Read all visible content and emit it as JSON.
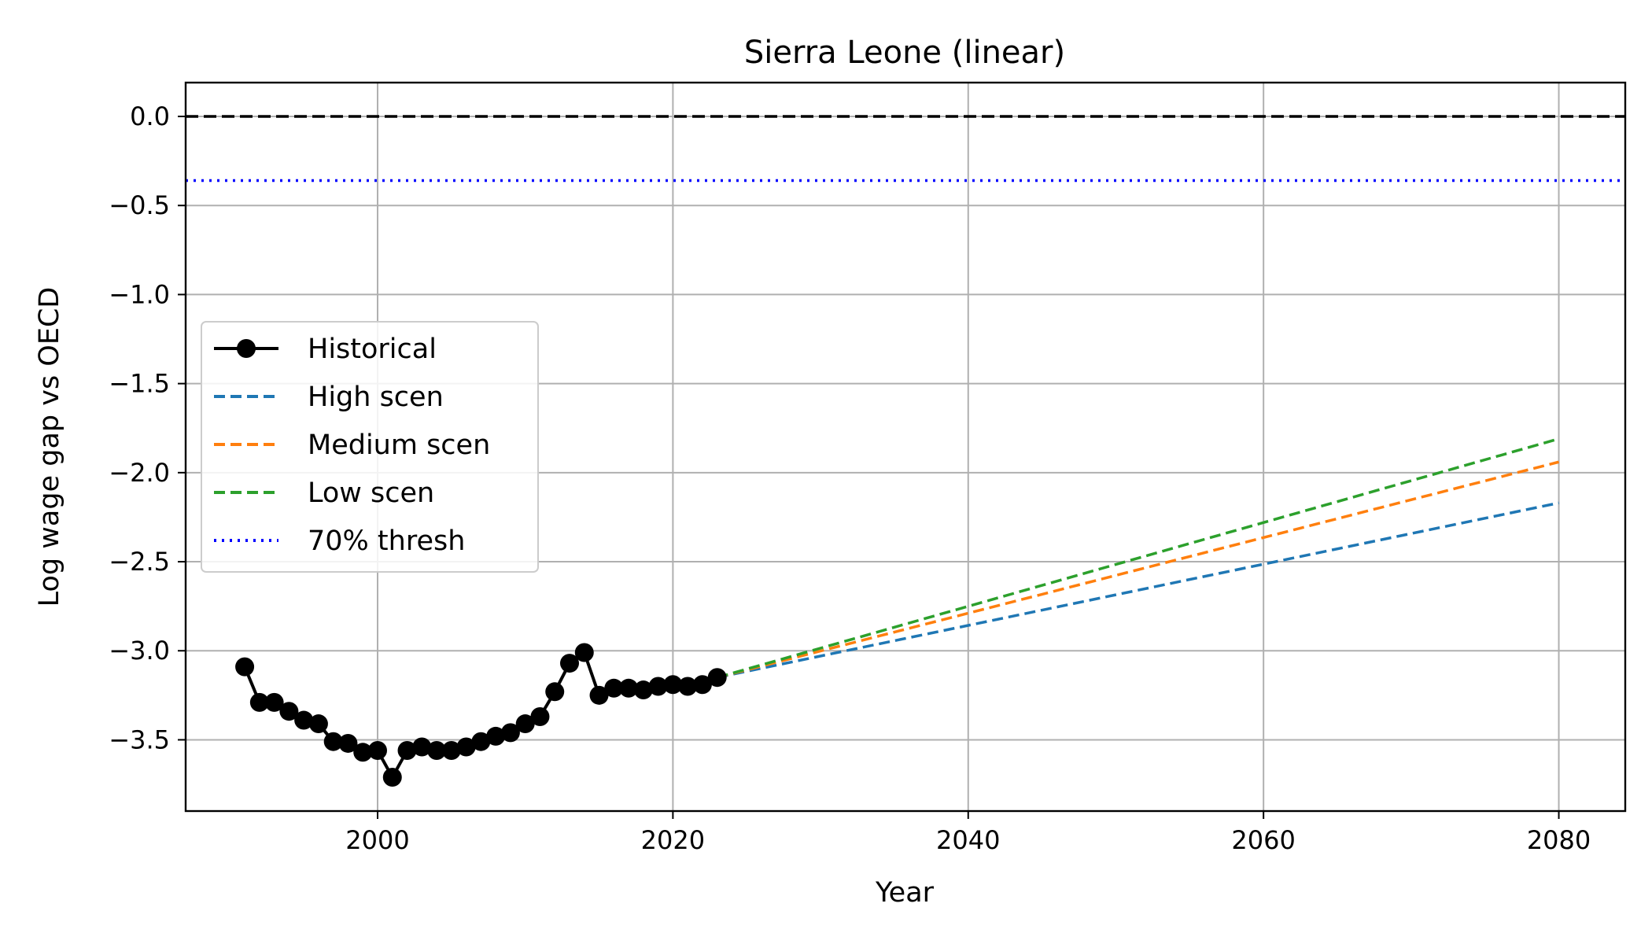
{
  "chart_data": {
    "type": "line",
    "title": "Sierra Leone (linear)",
    "xlabel": "Year",
    "ylabel": "Log wage gap vs OECD",
    "xlim": [
      1987,
      2084.5
    ],
    "ylim": [
      -3.9,
      0.19
    ],
    "xticks": [
      2000,
      2020,
      2040,
      2060,
      2080
    ],
    "xtick_labels": [
      "2000",
      "2020",
      "2040",
      "2060",
      "2080"
    ],
    "yticks": [
      0.0,
      -0.5,
      -1.0,
      -1.5,
      -2.0,
      -2.5,
      -3.0,
      -3.5
    ],
    "ytick_labels": [
      "0.0",
      "−0.5",
      "−1.0",
      "−1.5",
      "−2.0",
      "−2.5",
      "−3.0",
      "−3.5"
    ],
    "grid": true,
    "legend_position": "center-left",
    "reference_lines": [
      {
        "y": 0.0,
        "color": "#000000",
        "style": "dashed"
      },
      {
        "y": -0.36,
        "color": "#0000ff",
        "style": "dotted",
        "legend": "70% thresh"
      }
    ],
    "series": [
      {
        "name": "Historical",
        "color": "#000000",
        "style": "solid-markers",
        "x": [
          1991,
          1992,
          1993,
          1994,
          1995,
          1996,
          1997,
          1998,
          1999,
          2000,
          2001,
          2002,
          2003,
          2004,
          2005,
          2006,
          2007,
          2008,
          2009,
          2010,
          2011,
          2012,
          2013,
          2014,
          2015,
          2016,
          2017,
          2018,
          2019,
          2020,
          2021,
          2022,
          2023
        ],
        "y": [
          -3.09,
          -3.29,
          -3.29,
          -3.34,
          -3.39,
          -3.41,
          -3.51,
          -3.52,
          -3.57,
          -3.56,
          -3.71,
          -3.56,
          -3.54,
          -3.56,
          -3.56,
          -3.54,
          -3.51,
          -3.48,
          -3.46,
          -3.41,
          -3.37,
          -3.23,
          -3.07,
          -3.01,
          -3.25,
          -3.21,
          -3.21,
          -3.22,
          -3.2,
          -3.19,
          -3.2,
          -3.19,
          -3.15
        ]
      },
      {
        "name": "High scen",
        "color": "#1f77b4",
        "style": "dashed",
        "x": [
          2023,
          2080
        ],
        "y": [
          -3.15,
          -2.17
        ]
      },
      {
        "name": "Medium scen",
        "color": "#ff7f0e",
        "style": "dashed",
        "x": [
          2023,
          2080
        ],
        "y": [
          -3.15,
          -1.94
        ]
      },
      {
        "name": "Low scen",
        "color": "#2ca02c",
        "style": "dashed",
        "x": [
          2023,
          2080
        ],
        "y": [
          -3.15,
          -1.81
        ]
      }
    ],
    "legend": [
      "Historical",
      "High scen",
      "Medium scen",
      "Low scen",
      "70% thresh"
    ]
  }
}
